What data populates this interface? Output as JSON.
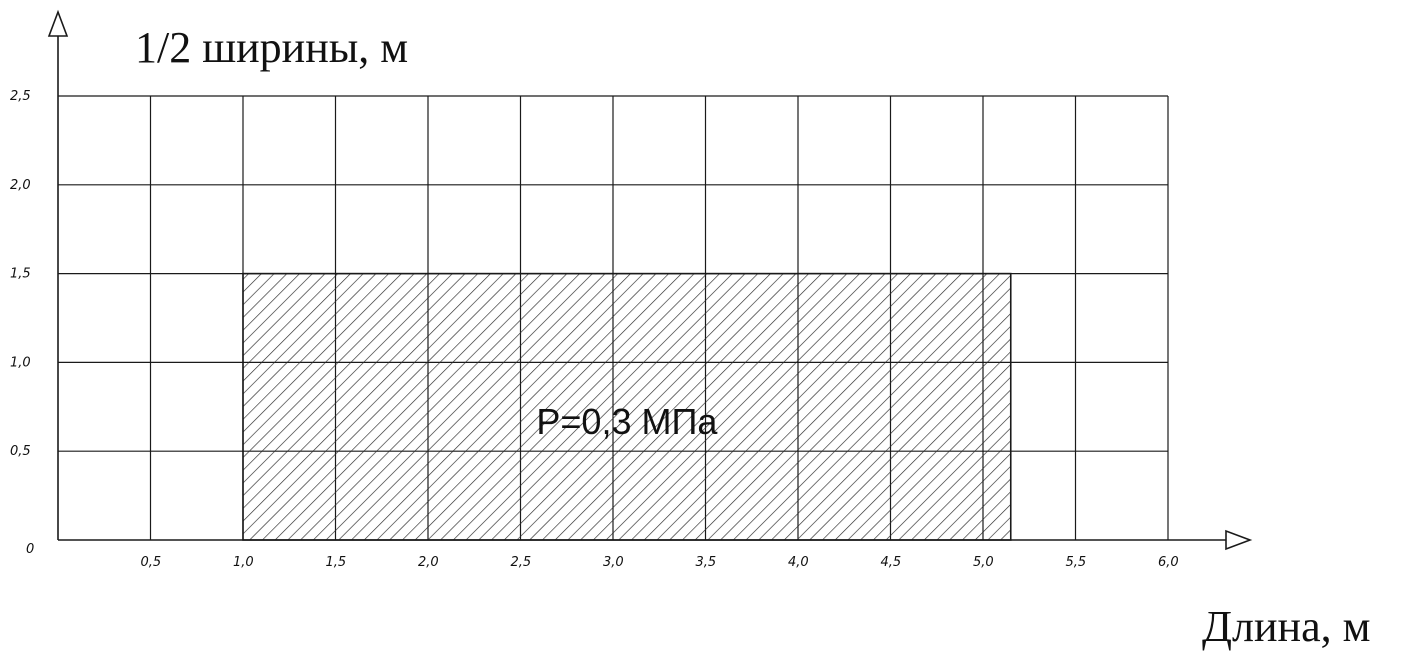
{
  "y_axis_title": "1/2 ширины, м",
  "x_axis_title": "Длина, м",
  "origin_label": "0",
  "y_ticks": [
    {
      "value": 0.5,
      "label": "0,5"
    },
    {
      "value": 1.0,
      "label": "1,0"
    },
    {
      "value": 1.5,
      "label": "1,5"
    },
    {
      "value": 2.0,
      "label": "2,0"
    },
    {
      "value": 2.5,
      "label": "2,5"
    }
  ],
  "x_ticks": [
    {
      "value": 0.5,
      "label": "0,5"
    },
    {
      "value": 1.0,
      "label": "1,0"
    },
    {
      "value": 1.5,
      "label": "1,5"
    },
    {
      "value": 2.0,
      "label": "2,0"
    },
    {
      "value": 2.5,
      "label": "2,5"
    },
    {
      "value": 3.0,
      "label": "3,0"
    },
    {
      "value": 3.5,
      "label": "3,5"
    },
    {
      "value": 4.0,
      "label": "4,0"
    },
    {
      "value": 4.5,
      "label": "4,5"
    },
    {
      "value": 5.0,
      "label": "5,0"
    },
    {
      "value": 5.5,
      "label": "5,5"
    },
    {
      "value": 6.0,
      "label": "6,0"
    }
  ],
  "grid": {
    "x_range": [
      0,
      6.0
    ],
    "y_range": [
      0,
      2.5
    ],
    "step": 0.5
  },
  "load_area": {
    "label": "P=0,3 МПа",
    "x_range": [
      1.0,
      5.15
    ],
    "y_range": [
      0,
      1.5
    ]
  },
  "colors": {
    "line": "#1a1a1a",
    "hatch": "#2a2a2a"
  }
}
